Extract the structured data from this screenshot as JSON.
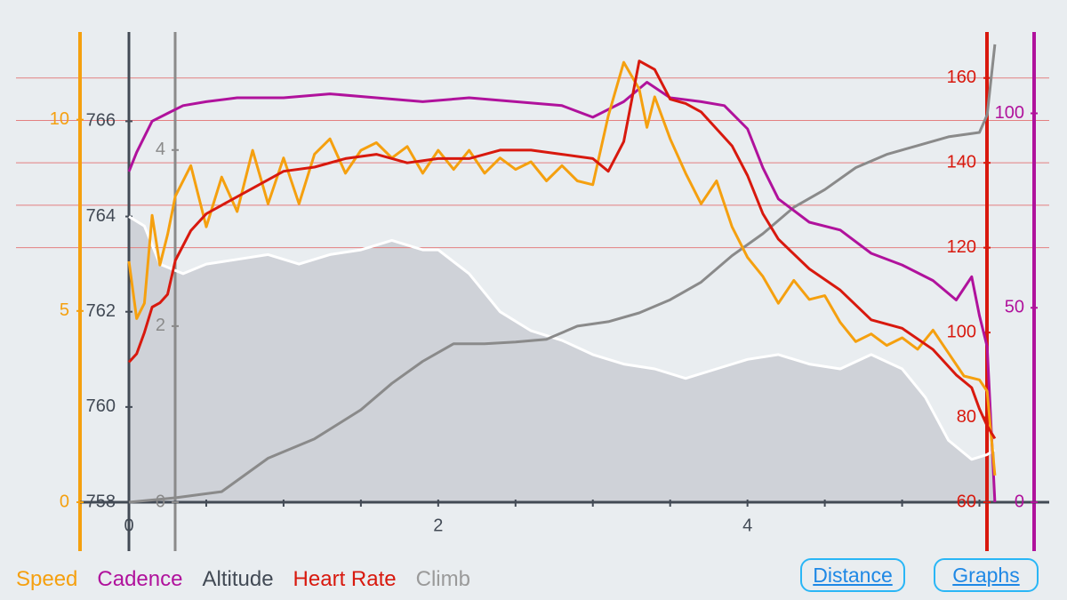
{
  "colors": {
    "speed": "#f5a00f",
    "cadence": "#b0129c",
    "altitude": "#424a55",
    "heart_rate": "#d8190e",
    "climb": "#8a8a8a",
    "grid": "#e38080",
    "background": "#e9edf0",
    "altitude_fill": "#cfd2d8",
    "button": "#1e88e5"
  },
  "footer": {
    "legend": [
      "Speed",
      "Cadence",
      "Altitude",
      "Heart Rate",
      "Climb"
    ],
    "distance_button": "Distance",
    "graphs_button": "Graphs"
  },
  "chart_data": {
    "type": "line",
    "x_axis": {
      "ticks": [
        "0",
        "2",
        "4"
      ],
      "range": [
        0,
        5.75
      ]
    },
    "axes": {
      "speed": {
        "ticks": [
          "0",
          "5",
          "10"
        ],
        "range": [
          0,
          12.2
        ]
      },
      "altitude": {
        "ticks": [
          "758",
          "760",
          "762",
          "764",
          "766"
        ],
        "range": [
          758,
          767.8
        ]
      },
      "climb": {
        "ticks": [
          "0",
          "2",
          "4"
        ],
        "range": [
          0,
          5.3
        ]
      },
      "heart_rate": {
        "ticks": [
          "60",
          "80",
          "100",
          "120",
          "140",
          "160"
        ],
        "range": [
          60,
          170
        ]
      },
      "cadence": {
        "ticks": [
          "0",
          "50",
          "100"
        ],
        "range": [
          0,
          120
        ]
      }
    },
    "grid": true,
    "series": [
      {
        "name": "Altitude",
        "axis": "altitude",
        "x": [
          0,
          0.1,
          0.2,
          0.35,
          0.5,
          0.7,
          0.9,
          1.1,
          1.3,
          1.5,
          1.7,
          1.9,
          2.0,
          2.2,
          2.4,
          2.6,
          2.8,
          3.0,
          3.2,
          3.4,
          3.6,
          3.8,
          4.0,
          4.2,
          4.4,
          4.6,
          4.8,
          5.0,
          5.15,
          5.3,
          5.45,
          5.55,
          5.6
        ],
        "y": [
          764.0,
          763.8,
          763.0,
          762.8,
          763.0,
          763.1,
          763.2,
          763.0,
          763.2,
          763.3,
          763.5,
          763.3,
          763.3,
          762.8,
          762.0,
          761.6,
          761.4,
          761.1,
          760.9,
          760.8,
          760.6,
          760.8,
          761.0,
          761.1,
          760.9,
          760.8,
          761.1,
          760.8,
          760.2,
          759.3,
          758.9,
          759.0,
          759.1
        ]
      },
      {
        "name": "Climb",
        "axis": "climb",
        "x": [
          0,
          0.3,
          0.6,
          0.9,
          1.2,
          1.5,
          1.7,
          1.9,
          2.1,
          2.3,
          2.5,
          2.7,
          2.9,
          3.1,
          3.3,
          3.5,
          3.7,
          3.9,
          4.1,
          4.3,
          4.5,
          4.7,
          4.9,
          5.1,
          5.3,
          5.5,
          5.55,
          5.6
        ],
        "y": [
          0.0,
          0.05,
          0.12,
          0.5,
          0.72,
          1.05,
          1.35,
          1.6,
          1.8,
          1.8,
          1.82,
          1.85,
          2.0,
          2.05,
          2.15,
          2.3,
          2.5,
          2.8,
          3.05,
          3.35,
          3.55,
          3.8,
          3.95,
          4.05,
          4.15,
          4.2,
          4.4,
          5.2
        ]
      },
      {
        "name": "Cadence",
        "axis": "cadence",
        "x": [
          0,
          0.05,
          0.15,
          0.25,
          0.35,
          0.5,
          0.7,
          1.0,
          1.3,
          1.6,
          1.9,
          2.2,
          2.5,
          2.8,
          3.0,
          3.2,
          3.35,
          3.5,
          3.7,
          3.85,
          4.0,
          4.1,
          4.2,
          4.4,
          4.6,
          4.8,
          5.0,
          5.2,
          5.35,
          5.45,
          5.5,
          5.55,
          5.6
        ],
        "y": [
          85,
          90,
          98,
          100,
          102,
          103,
          104,
          104,
          105,
          104,
          103,
          104,
          103,
          102,
          99,
          103,
          108,
          104,
          103,
          102,
          96,
          86,
          78,
          72,
          70,
          64,
          61,
          57,
          52,
          58,
          48,
          40,
          0
        ]
      },
      {
        "name": "Speed",
        "axis": "speed",
        "x": [
          0,
          0.05,
          0.1,
          0.15,
          0.2,
          0.25,
          0.3,
          0.4,
          0.5,
          0.6,
          0.7,
          0.8,
          0.9,
          1.0,
          1.1,
          1.2,
          1.3,
          1.4,
          1.5,
          1.6,
          1.7,
          1.8,
          1.9,
          2.0,
          2.1,
          2.2,
          2.3,
          2.4,
          2.5,
          2.6,
          2.7,
          2.8,
          2.9,
          3.0,
          3.1,
          3.2,
          3.3,
          3.35,
          3.4,
          3.5,
          3.6,
          3.7,
          3.8,
          3.9,
          4.0,
          4.1,
          4.2,
          4.3,
          4.4,
          4.5,
          4.6,
          4.7,
          4.8,
          4.9,
          5.0,
          5.1,
          5.2,
          5.3,
          5.4,
          5.5,
          5.55,
          5.6
        ],
        "y": [
          6.3,
          4.8,
          5.2,
          7.5,
          6.2,
          7.0,
          8.0,
          8.8,
          7.2,
          8.5,
          7.6,
          9.2,
          7.8,
          9.0,
          7.8,
          9.1,
          9.5,
          8.6,
          9.2,
          9.4,
          9.0,
          9.3,
          8.6,
          9.2,
          8.7,
          9.2,
          8.6,
          9.0,
          8.7,
          8.9,
          8.4,
          8.8,
          8.4,
          8.3,
          10.1,
          11.5,
          10.8,
          9.8,
          10.6,
          9.5,
          8.6,
          7.8,
          8.4,
          7.2,
          6.4,
          5.9,
          5.2,
          5.8,
          5.3,
          5.4,
          4.7,
          4.2,
          4.4,
          4.1,
          4.3,
          4.0,
          4.5,
          3.9,
          3.3,
          3.2,
          2.9,
          0.7
        ]
      },
      {
        "name": "Heart Rate",
        "axis": "heart_rate",
        "x": [
          0,
          0.05,
          0.1,
          0.15,
          0.2,
          0.25,
          0.3,
          0.4,
          0.5,
          0.6,
          0.8,
          1.0,
          1.2,
          1.4,
          1.6,
          1.8,
          2.0,
          2.2,
          2.4,
          2.6,
          2.8,
          3.0,
          3.1,
          3.2,
          3.3,
          3.4,
          3.5,
          3.6,
          3.7,
          3.8,
          3.9,
          4.0,
          4.1,
          4.2,
          4.4,
          4.6,
          4.8,
          5.0,
          5.2,
          5.35,
          5.45,
          5.5,
          5.55,
          5.6
        ],
        "y": [
          93,
          95,
          100,
          106,
          107,
          109,
          117,
          124,
          128,
          130,
          134,
          138,
          139,
          141,
          142,
          140,
          141,
          141,
          143,
          143,
          142,
          141,
          138,
          145,
          164,
          162,
          155,
          154,
          152,
          148,
          144,
          137,
          128,
          122,
          115,
          110,
          103,
          101,
          96,
          90,
          87,
          82,
          78,
          75
        ]
      }
    ]
  }
}
